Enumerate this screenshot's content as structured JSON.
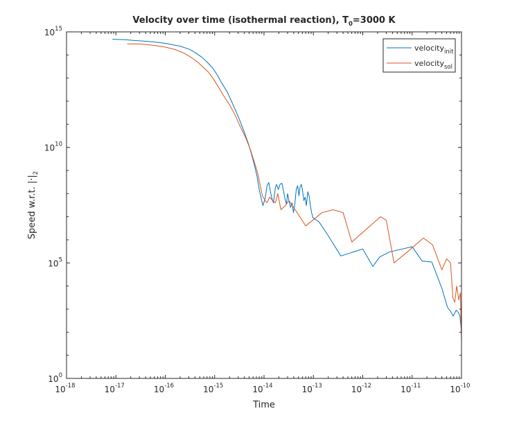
{
  "chart_data": {
    "type": "line",
    "title": {
      "text": "Velocity over time (isothermal reaction), T",
      "subscript": "0",
      "suffix": "=3000 K"
    },
    "xlabel": "Time",
    "ylabel": "Speed w.r.t. |·|",
    "ylabel_subscript": "2",
    "x_scale": "log",
    "y_scale": "log",
    "xlim": [
      1e-18,
      1e-10
    ],
    "ylim": [
      1,
      1000000000000000.0
    ],
    "x_ticks": [
      {
        "base": "10",
        "exp": "-18",
        "value": 1e-18
      },
      {
        "base": "10",
        "exp": "-17",
        "value": 1e-17
      },
      {
        "base": "10",
        "exp": "-16",
        "value": 1e-16
      },
      {
        "base": "10",
        "exp": "-15",
        "value": 1e-15
      },
      {
        "base": "10",
        "exp": "-14",
        "value": 1e-14
      },
      {
        "base": "10",
        "exp": "-13",
        "value": 1e-13
      },
      {
        "base": "10",
        "exp": "-12",
        "value": 1e-12
      },
      {
        "base": "10",
        "exp": "-11",
        "value": 1e-11
      },
      {
        "base": "10",
        "exp": "-10",
        "value": 1e-10
      }
    ],
    "y_ticks": [
      {
        "base": "10",
        "exp": "0",
        "value": 1
      },
      {
        "base": "10",
        "exp": "5",
        "value": 100000.0
      },
      {
        "base": "10",
        "exp": "10",
        "value": 10000000000.0
      },
      {
        "base": "10",
        "exp": "15",
        "value": 1000000000000000.0
      }
    ],
    "grid": false,
    "box": true,
    "legend_position": "top-right",
    "series": [
      {
        "name": "velocity",
        "name_subscript": "init",
        "color": "#0072bd",
        "x": [
          8.5e-18,
          1.5e-17,
          2.5e-17,
          5e-17,
          1e-16,
          2e-16,
          3e-16,
          4e-16,
          5.5e-16,
          7e-16,
          9e-16,
          1.1e-15,
          1.4e-15,
          1.8e-15,
          2.3e-15,
          3e-15,
          3.8e-15,
          4.8e-15,
          5.6e-15,
          6.5e-15,
          7.3e-15,
          8e-15,
          8.8e-15,
          9.5e-15,
          1.05e-14,
          1.15e-14,
          1.25e-14,
          1.35e-14,
          1.45e-14,
          1.55e-14,
          1.7e-14,
          1.8e-14,
          1.95e-14,
          2.1e-14,
          2.3e-14,
          2.5e-14,
          2.65e-14,
          2.85e-14,
          3e-14,
          3.2e-14,
          3.45e-14,
          3.7e-14,
          3.95e-14,
          4.2e-14,
          4.5e-14,
          4.8e-14,
          5.1e-14,
          5.4e-14,
          5.7e-14,
          6e-14,
          6.4e-14,
          6.8e-14,
          7.2e-14,
          7.7e-14,
          8.2e-14,
          8.7e-14,
          9.2e-14,
          9.8e-14,
          1.3e-13,
          2e-13,
          3.6e-13,
          1e-12,
          1.6e-12,
          2.2e-12,
          3.5e-12,
          1e-11,
          1.6e-11,
          2.5e-11,
          4e-11,
          5.2e-11,
          6e-11,
          6.8e-11,
          7.8e-11,
          8.7e-11,
          9.3e-11,
          1e-10
        ],
        "y": [
          480000000000000.0,
          460000000000000.0,
          420000000000000.0,
          380000000000000.0,
          320000000000000.0,
          240000000000000.0,
          180000000000000.0,
          130000000000000.0,
          80000000000000.0,
          50000000000000.0,
          28000000000000.0,
          15000000000000.0,
          6000000000000.0,
          2500000000000.0,
          800000000000.0,
          220000000000.0,
          60000000000.0,
          15000000000.0,
          5000000000.0,
          1500000000.0,
          500000000.0,
          150000000.0,
          60000000.0,
          30000000.0,
          60000000.0,
          220000000.0,
          300000000.0,
          120000000.0,
          60000000.0,
          40000000.0,
          180000000.0,
          250000000.0,
          150000000.0,
          250000000.0,
          280000000.0,
          120000000.0,
          60000000.0,
          35000000.0,
          100000000.0,
          50000000.0,
          25000000.0,
          40000000.0,
          15000000.0,
          35000000.0,
          150000000.0,
          220000000.0,
          80000000.0,
          200000000.0,
          250000000.0,
          150000000.0,
          50000000.0,
          70000000.0,
          30000000.0,
          120000000.0,
          80000000.0,
          30000000.0,
          15000000.0,
          9000000.0,
          6000000.0,
          1500000.0,
          200000.0,
          400000.0,
          70000.0,
          180000.0,
          300000.0,
          500000.0,
          120000.0,
          110000.0,
          8000.0,
          1200.0,
          800.0,
          500.0,
          900.0,
          700.0,
          500.0,
          100.0
        ]
      },
      {
        "name": "velocity",
        "name_subscript": "sol",
        "color": "#d95319",
        "x": [
          1.7e-17,
          3e-17,
          6e-17,
          1e-16,
          1.6e-16,
          2.4e-16,
          3.3e-16,
          4.5e-16,
          5.8e-16,
          7.5e-16,
          9.5e-16,
          1.2e-15,
          1.5e-15,
          2e-15,
          2.6e-15,
          3.3e-15,
          4.3e-15,
          5.3e-15,
          6.3e-15,
          7.4e-15,
          8.3e-15,
          9.3e-15,
          1.05e-14,
          1.15e-14,
          1.3e-14,
          1.5e-14,
          1.7e-14,
          1.9e-14,
          2.2e-14,
          2.7e-14,
          3.2e-14,
          4e-14,
          7e-14,
          1.5e-13,
          2.5e-13,
          4e-13,
          6e-13,
          2.3e-12,
          3e-12,
          4.3e-12,
          8e-12,
          1.7e-11,
          2.6e-11,
          4e-11,
          5e-11,
          6e-11,
          6.7e-11,
          7.3e-11,
          8e-11,
          8.8e-11,
          9.5e-11,
          1e-10
        ],
        "y": [
          300000000000000.0,
          300000000000000.0,
          260000000000000.0,
          220000000000000.0,
          170000000000000.0,
          120000000000000.0,
          80000000000000.0,
          50000000000000.0,
          30000000000000.0,
          18000000000000.0,
          9000000000000.0,
          4000000000000.0,
          1800000000000.0,
          700000000000.0,
          250000000000.0,
          80000000000.0,
          25000000000.0,
          8000000000.0,
          2500000000.0,
          800000000.0,
          250000000.0,
          80000000.0,
          50000000.0,
          40000000.0,
          70000000.0,
          50000000.0,
          40000000.0,
          100000000.0,
          20000000.0,
          30000000.0,
          50000000.0,
          25000000.0,
          4000000.0,
          15000000.0,
          20000000.0,
          15000000.0,
          800000.0,
          10000000.0,
          7000000.0,
          100000.0,
          300000.0,
          1200000.0,
          600000.0,
          50000.0,
          150000.0,
          100000.0,
          3000.0,
          2000.0,
          10000.0,
          2500.0,
          5000.0,
          40.0
        ]
      }
    ]
  }
}
